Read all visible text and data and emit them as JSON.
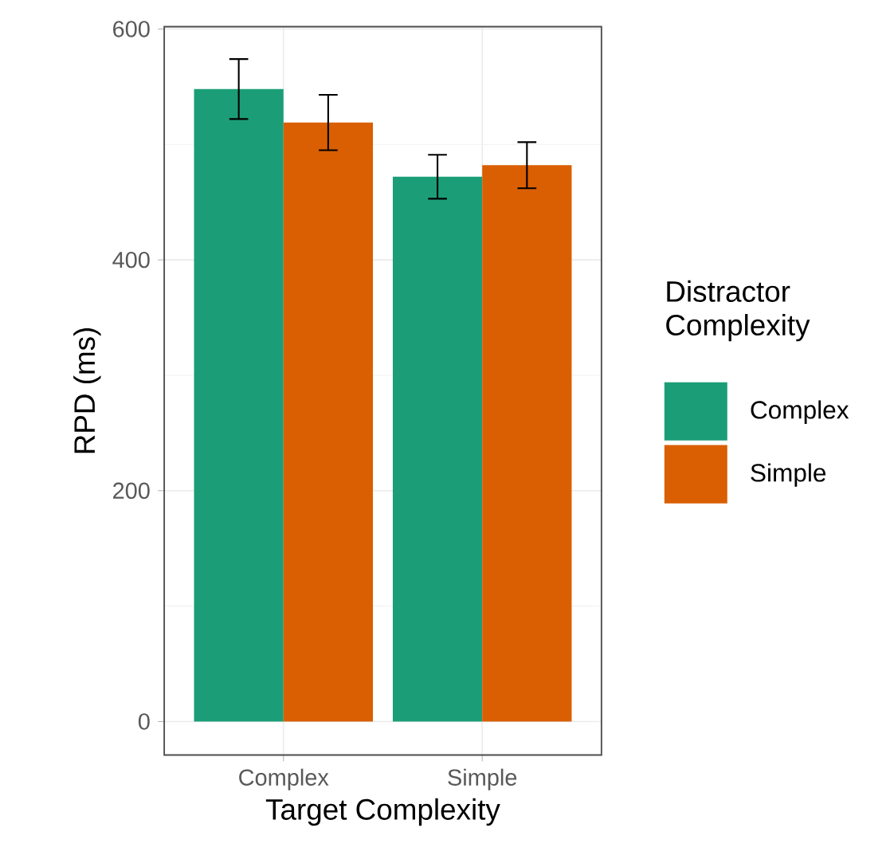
{
  "chart_data": {
    "type": "bar",
    "xlabel": "Target Complexity",
    "ylabel": "RPD (ms)",
    "legend_title": "Distractor Complexity",
    "categories": [
      "Complex",
      "Simple"
    ],
    "series": [
      {
        "name": "Complex",
        "color": "#1b9e77",
        "values": [
          548,
          472
        ],
        "errors": [
          26,
          19
        ]
      },
      {
        "name": "Simple",
        "color": "#d95f02",
        "values": [
          519,
          482
        ],
        "errors": [
          24,
          20
        ]
      }
    ],
    "ylim": [
      -29,
      602
    ],
    "yticks": [
      0,
      200,
      400,
      600
    ],
    "grid": true,
    "legend": "right"
  }
}
